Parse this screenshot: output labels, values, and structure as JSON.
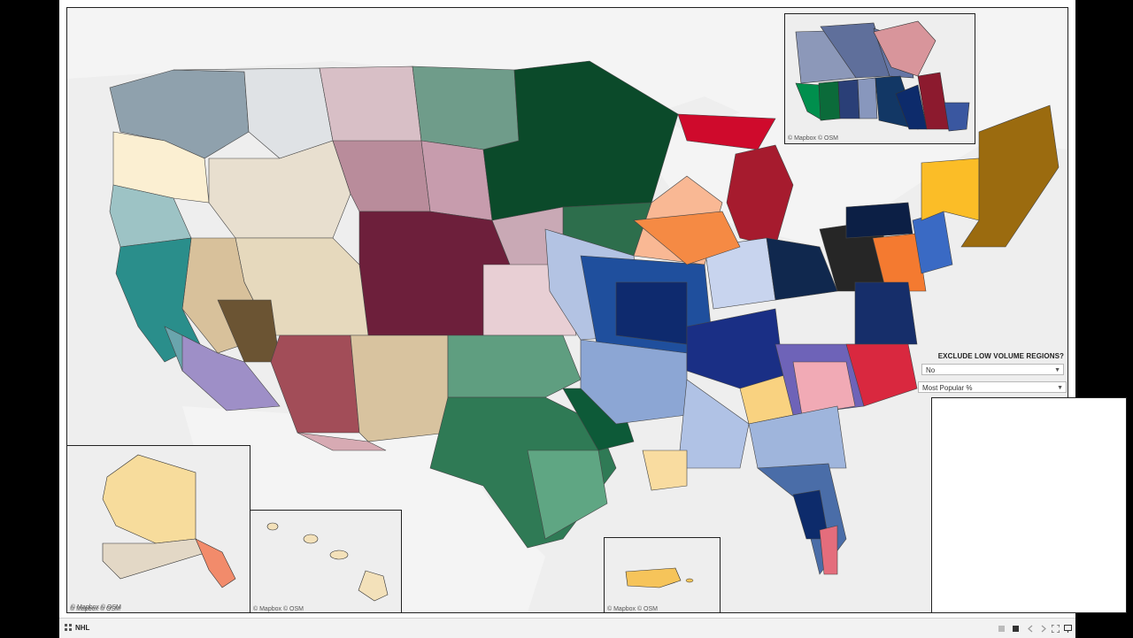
{
  "map": {
    "attribution": "© Mapbox © OSM",
    "ocean_color": "#eeeeee",
    "land_color": "#f7f7f7"
  },
  "insets": [
    {
      "id": "canada",
      "attribution": "© Mapbox © OSM"
    },
    {
      "id": "alaska",
      "attribution": "© Mapbox © OSM"
    },
    {
      "id": "hawaii",
      "attribution": "© Mapbox © OSM"
    },
    {
      "id": "puerto-rico",
      "attribution": "© Mapbox © OSM"
    }
  ],
  "filters": {
    "title": "EXCLUDE LOW VOLUME REGIONS?",
    "exclude_value": "No",
    "metric_value": "Most Popular %"
  },
  "tabbar": {
    "sheet_name": "NHL",
    "icons": [
      "grid-icon",
      "first-page-icon",
      "prev-page-icon",
      "next-page-icon",
      "last-page-icon",
      "fullscreen-icon",
      "present-icon"
    ]
  },
  "team_colors": {
    "seattle": "#8fa1ad",
    "boise": "#dfe2e5",
    "oregon": "#fbefd2",
    "vegas_ne": "#e8dfcf",
    "colorado": "#6d1f3b",
    "minnesota": "#0b4a2a",
    "dallas": "#2f7a55",
    "detroit": "#a61b2e",
    "chicago": "#cf0a2c",
    "st_louis": "#1f4f9d",
    "nashville": "#f9d280",
    "tampa": "#0d2b6b",
    "florida": "#e46d7c",
    "carolina": "#d9283f",
    "columbus": "#10284e",
    "pittsburgh": "#262626",
    "philadelphia": "#f47a30",
    "washington": "#162e6a",
    "ny_rangers": "#3a6ac4",
    "boston": "#9b6b0f",
    "buffalo": "#fbbd27",
    "san_jose": "#2a8e8b",
    "la_kings": "#9e8fc7",
    "anaheim": "#6aa5ad",
    "arizona": "#a24d58",
    "winnipeg": "#123765",
    "montreal": "#8c1a2e",
    "alaska": "#f7dc9c",
    "hawaii": "#f3e1ba",
    "puerto_rico": "#f6c45a"
  }
}
